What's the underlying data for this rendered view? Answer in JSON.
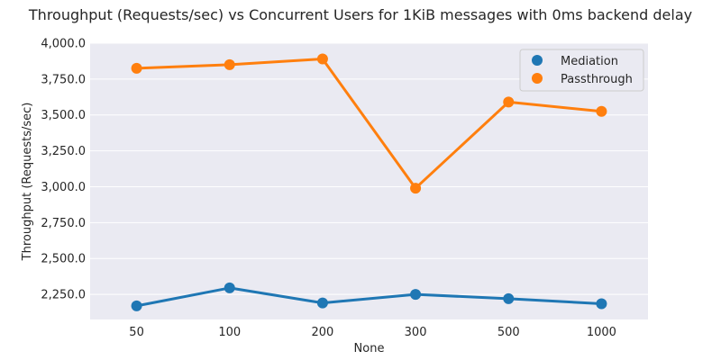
{
  "chart_data": {
    "type": "line",
    "title": "Throughput (Requests/sec) vs Concurrent Users for 1KiB messages with 0ms backend delay",
    "xlabel": "None",
    "ylabel": "Throughput (Requests/sec)",
    "categories": [
      "50",
      "100",
      "200",
      "300",
      "500",
      "1000"
    ],
    "ylim": [
      2075,
      4000
    ],
    "yticks": [
      2250,
      2500,
      2750,
      3000,
      3250,
      3500,
      3750,
      4000
    ],
    "ytick_labels": [
      "2,250.0",
      "2,500.0",
      "2,750.0",
      "3,000.0",
      "3,250.0",
      "3,500.0",
      "3,750.0",
      "4,000.0"
    ],
    "grid": true,
    "legend": "top-right",
    "series": [
      {
        "name": "Mediation",
        "color": "#1f77b4",
        "values": [
          2170,
          2295,
          2190,
          2250,
          2220,
          2185
        ]
      },
      {
        "name": "Passthrough",
        "color": "#ff7f0e",
        "values": [
          3825,
          3850,
          3890,
          2990,
          3590,
          3525
        ]
      }
    ]
  }
}
